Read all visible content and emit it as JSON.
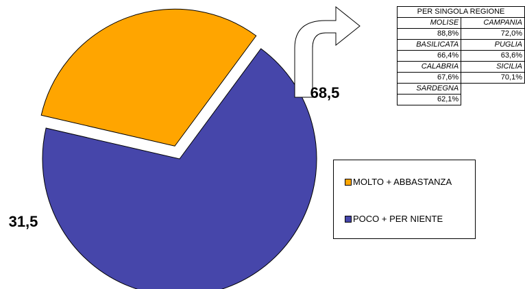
{
  "chart_data": {
    "type": "pie",
    "slices": [
      {
        "label": "MOLTO + ABBASTANZA",
        "value": 31.5,
        "value_label": "31,5",
        "color": "#FFA500",
        "exploded": true
      },
      {
        "label": "POCO + PER NIENTE",
        "value": 68.5,
        "value_label": "68,5",
        "color": "#4646AA",
        "exploded": false
      }
    ],
    "legend": {
      "placement": "right",
      "entries": [
        "MOLTO + ABBASTANZA",
        "POCO + PER NIENTE"
      ]
    },
    "region_table": {
      "header": "PER SINGOLA REGIONE",
      "rows": [
        {
          "left_name": "MOLISE",
          "left_value": "88,8%",
          "right_name": "CAMPANIA",
          "right_value": "72,0%"
        },
        {
          "left_name": "BASILICATA",
          "left_value": "66,4%",
          "right_name": "PUGLIA",
          "right_value": "63,6%"
        },
        {
          "left_name": "CALABRIA",
          "left_value": "67,6%",
          "right_name": "SICILIA",
          "right_value": "70,1%"
        },
        {
          "left_name": "SARDEGNA",
          "left_value": "62,1%",
          "right_name": "",
          "right_value": ""
        }
      ]
    }
  }
}
